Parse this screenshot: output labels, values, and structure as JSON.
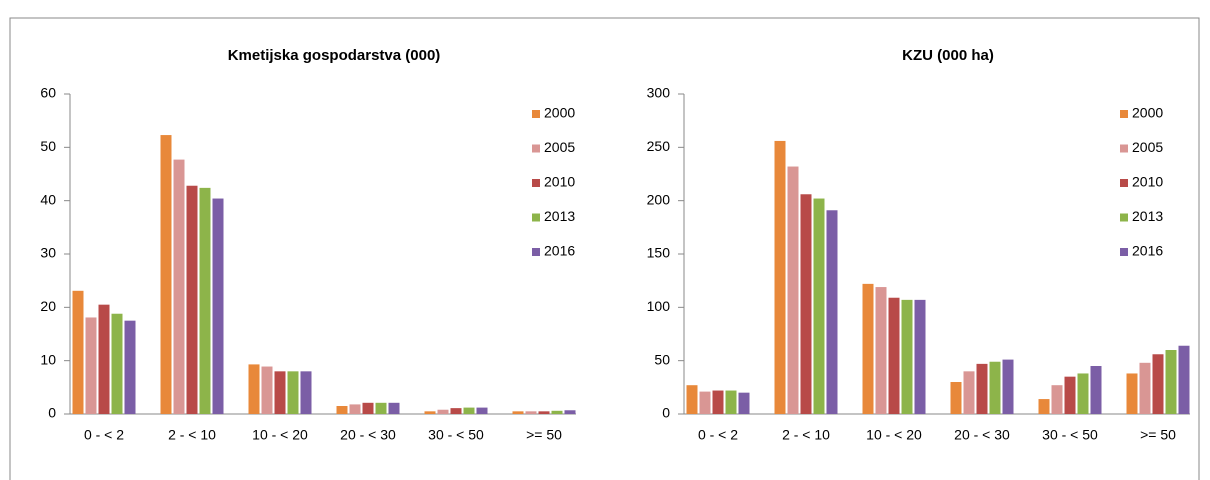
{
  "chart_data": [
    {
      "type": "bar",
      "title": "Kmetijska gospodarstva (000)",
      "categories": [
        "0 - < 2",
        "2 - < 10",
        "10 - < 20",
        "20 - < 30",
        "30 - < 50",
        ">= 50"
      ],
      "series": [
        {
          "name": "2000",
          "color": "#e8883a",
          "values": [
            23.1,
            52.3,
            9.3,
            1.5,
            0.5,
            0.5
          ]
        },
        {
          "name": "2005",
          "color": "#d99694",
          "values": [
            18.1,
            47.7,
            8.9,
            1.8,
            0.8,
            0.5
          ]
        },
        {
          "name": "2010",
          "color": "#b84a48",
          "values": [
            20.5,
            42.8,
            8.0,
            2.1,
            1.1,
            0.5
          ]
        },
        {
          "name": "2013",
          "color": "#8db44a",
          "values": [
            18.8,
            42.4,
            8.0,
            2.1,
            1.2,
            0.6
          ]
        },
        {
          "name": "2016",
          "color": "#7b5ea6",
          "values": [
            17.5,
            40.4,
            8.0,
            2.1,
            1.2,
            0.7
          ]
        }
      ],
      "ylim": [
        0,
        60
      ],
      "yticks": [
        0,
        10,
        20,
        30,
        40,
        50,
        60
      ],
      "legend": "upper right"
    },
    {
      "type": "bar",
      "title": "KZU (000 ha)",
      "categories": [
        "0 - < 2",
        "2 - < 10",
        "10 - < 20",
        "20 - < 30",
        "30 - < 50",
        ">= 50"
      ],
      "series": [
        {
          "name": "2000",
          "color": "#e8883a",
          "values": [
            27,
            256,
            122,
            30,
            14,
            38
          ]
        },
        {
          "name": "2005",
          "color": "#d99694",
          "values": [
            21,
            232,
            119,
            40,
            27,
            48
          ]
        },
        {
          "name": "2010",
          "color": "#b84a48",
          "values": [
            22,
            206,
            109,
            47,
            35,
            56
          ]
        },
        {
          "name": "2013",
          "color": "#8db44a",
          "values": [
            22,
            202,
            107,
            49,
            38,
            60
          ]
        },
        {
          "name": "2016",
          "color": "#7b5ea6",
          "values": [
            20,
            191,
            107,
            51,
            45,
            64
          ]
        }
      ],
      "ylim": [
        0,
        300
      ],
      "yticks": [
        0,
        50,
        100,
        150,
        200,
        250,
        300
      ],
      "legend": "upper right"
    }
  ]
}
